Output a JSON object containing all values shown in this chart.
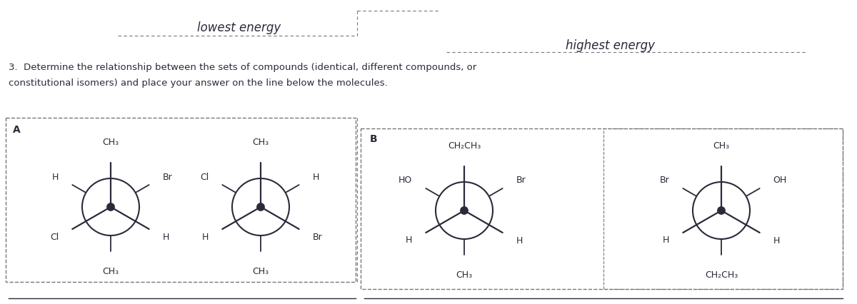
{
  "bg_color": "#ffffff",
  "text_color": "#2a2a2a",
  "dark_color": "#2a2a3a",
  "title_lowest": "lowest energy",
  "title_highest": "highest energy",
  "question_line1": "3.  Determine the relationship between the sets of compounds (identical, different compounds, or",
  "question_line2": "constitutional isomers) and place your answer on the line below the molecules.",
  "box_A_label": "A",
  "box_B_label": "B",
  "newman1_front": {
    "top": "CH₃",
    "lower_left": "Cl",
    "lower_right": "H"
  },
  "newman1_back": {
    "bottom": "CH₃",
    "upper_left": "H",
    "upper_right": "Br"
  },
  "newman2_front": {
    "top": "CH₃",
    "lower_left": "H",
    "lower_right": "Br"
  },
  "newman2_back": {
    "bottom": "CH₃",
    "upper_left": "Cl",
    "upper_right": "H"
  },
  "newman3_front": {
    "top": "CH₂CH₃",
    "lower_left": "H",
    "lower_right": "H"
  },
  "newman3_back": {
    "bottom": "CH₃",
    "upper_left": "HO",
    "upper_right": "Br"
  },
  "newman4_front": {
    "top": "CH₃",
    "lower_left": "H",
    "lower_right": "H"
  },
  "newman4_back": {
    "bottom": "CH₂CH₃",
    "upper_left": "Br",
    "upper_right": "OH"
  },
  "dash_color": "#777777",
  "font_size_title": 12,
  "font_size_question": 9.5,
  "font_size_label": 9,
  "font_size_box_label": 10
}
